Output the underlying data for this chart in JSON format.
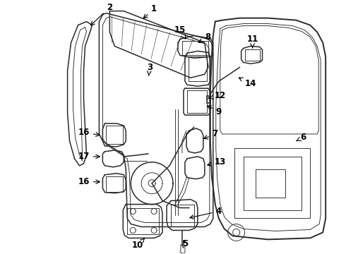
{
  "background_color": "#ffffff",
  "line_color": "#2a2a2a",
  "label_color": "#000000",
  "fig_width": 4.9,
  "fig_height": 3.6,
  "dpi": 100,
  "label_fontsize": 8.5,
  "lw_main": 1.1,
  "lw_thin": 0.65,
  "lw_thick": 1.4,
  "parts": {
    "window_run_channel": "2",
    "glass": "1",
    "glass_run": "3",
    "regulator_motor": "5",
    "door_outer_panel": "6",
    "cable_bracket_upper": "7",
    "lock_assy": "8",
    "latch": "9",
    "motor_assy": "10",
    "exterior_handle": "11",
    "cable_bracket_lower": "12",
    "cable_guide": "13",
    "rod": "14",
    "window_regulator": "15",
    "hinge_upper": "16",
    "door_check": "17",
    "hinge_lower": "16",
    "regulator_bracket": "4"
  }
}
